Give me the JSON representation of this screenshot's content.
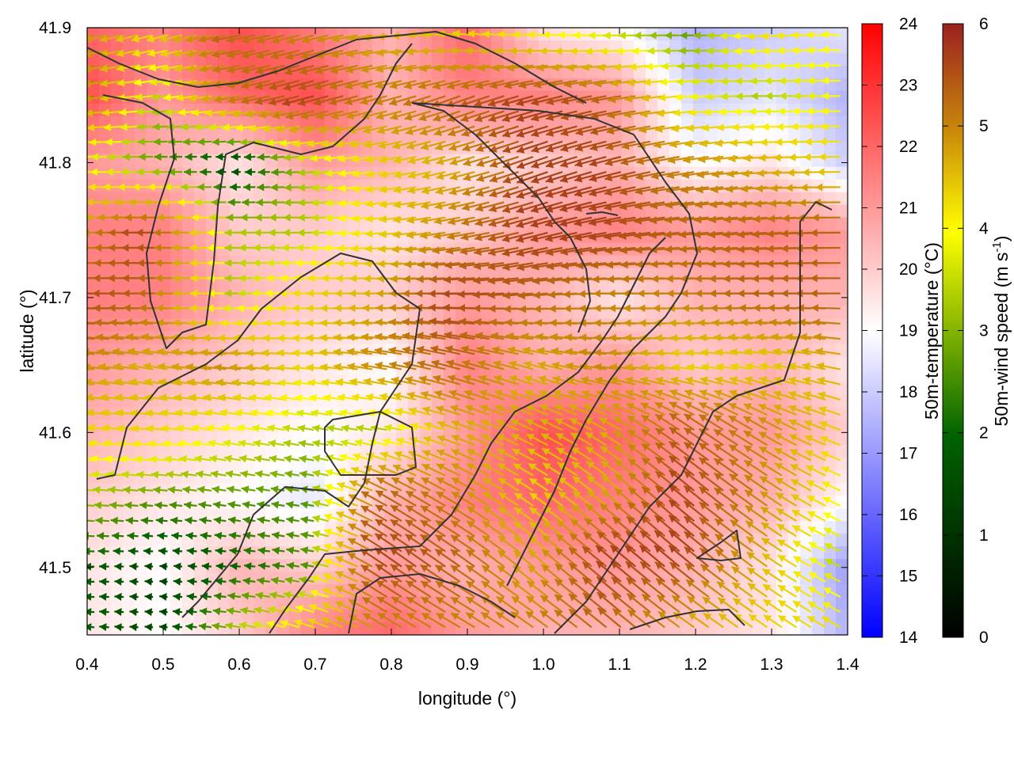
{
  "chart_data": {
    "type": "heatmap",
    "title": "",
    "xlabel": "longitude (°)",
    "ylabel": "latitude (°)",
    "xlim": [
      0.4,
      1.4
    ],
    "ylim": [
      41.45,
      41.9
    ],
    "x_ticks": [
      "0.4",
      "0.5",
      "0.6",
      "0.7",
      "0.8",
      "0.9",
      "1.0",
      "1.1",
      "1.2",
      "1.3",
      "1.4"
    ],
    "y_ticks": [
      "41.5",
      "41.6",
      "41.7",
      "41.8",
      "41.9"
    ],
    "colorbars": [
      {
        "label": "50m-temperature (°C)",
        "range": [
          14,
          24
        ],
        "ticks": [
          "14",
          "15",
          "16",
          "17",
          "18",
          "19",
          "20",
          "21",
          "22",
          "23",
          "24"
        ],
        "colors": [
          "#0000ff",
          "#ffffff",
          "#ff0000"
        ]
      },
      {
        "label_main": "50m-wind speed (m s",
        "label_sup": "-1",
        "label_end": ")",
        "range": [
          0,
          6
        ],
        "ticks": [
          "0",
          "1",
          "2",
          "3",
          "4",
          "5",
          "6"
        ],
        "colors": [
          "#000000",
          "#006400",
          "#ffff00",
          "#c8860a",
          "#9b2020"
        ]
      }
    ],
    "temperature_field": {
      "lon": [
        0.4,
        0.5,
        0.6,
        0.7,
        0.8,
        0.9,
        1.0,
        1.1,
        1.2,
        1.3,
        1.4
      ],
      "lat": [
        41.9,
        41.85,
        41.8,
        41.75,
        41.7,
        41.65,
        41.6,
        41.55,
        41.5,
        41.45
      ],
      "values": [
        [
          22.0,
          21.5,
          22.5,
          21.5,
          20.5,
          22.0,
          19.5,
          19.0,
          17.5,
          18.0,
          18.5
        ],
        [
          22.5,
          21.0,
          22.0,
          22.5,
          20.5,
          21.5,
          21.5,
          21.0,
          18.0,
          18.5,
          17.5
        ],
        [
          21.0,
          20.5,
          19.5,
          21.0,
          20.5,
          19.5,
          20.0,
          20.5,
          19.0,
          19.5,
          18.0
        ],
        [
          21.5,
          21.5,
          20.0,
          20.0,
          19.5,
          20.0,
          21.0,
          21.5,
          21.0,
          21.5,
          21.0
        ],
        [
          21.5,
          21.5,
          20.5,
          20.0,
          20.0,
          21.0,
          20.5,
          19.5,
          20.5,
          20.5,
          20.5
        ],
        [
          21.0,
          20.5,
          20.0,
          19.5,
          19.0,
          21.5,
          20.5,
          21.0,
          20.0,
          20.5,
          19.5
        ],
        [
          20.5,
          20.0,
          19.5,
          19.0,
          19.5,
          21.0,
          22.5,
          22.0,
          21.0,
          21.0,
          20.0
        ],
        [
          20.0,
          19.5,
          19.0,
          18.5,
          20.5,
          21.5,
          22.0,
          21.5,
          21.0,
          20.5,
          19.0
        ],
        [
          19.5,
          19.0,
          20.5,
          20.0,
          21.0,
          20.5,
          21.0,
          21.0,
          20.5,
          19.5,
          17.0
        ],
        [
          19.5,
          19.0,
          20.0,
          21.5,
          22.0,
          21.0,
          20.5,
          20.5,
          20.0,
          19.5,
          17.5
        ]
      ]
    },
    "wind_field": {
      "lon": [
        0.4,
        0.5,
        0.6,
        0.7,
        0.8,
        0.9,
        1.0,
        1.1,
        1.2,
        1.3,
        1.4
      ],
      "lat": [
        41.9,
        41.85,
        41.8,
        41.75,
        41.7,
        41.65,
        41.6,
        41.55,
        41.5,
        41.45
      ],
      "speed": [
        [
          4.5,
          3.5,
          5.0,
          4.5,
          4.0,
          3.5,
          3.0,
          2.5,
          2.0,
          3.5,
          3.0
        ],
        [
          5.0,
          2.5,
          4.5,
          5.5,
          4.5,
          5.0,
          5.5,
          5.0,
          3.0,
          2.5,
          3.0
        ],
        [
          3.0,
          2.0,
          1.0,
          2.5,
          3.5,
          4.0,
          5.5,
          5.5,
          4.5,
          4.0,
          3.5
        ],
        [
          4.0,
          5.5,
          2.5,
          2.5,
          3.5,
          4.5,
          5.5,
          5.5,
          5.0,
          5.0,
          5.0
        ],
        [
          5.5,
          5.0,
          2.5,
          3.5,
          4.0,
          5.5,
          5.0,
          4.5,
          4.5,
          5.0,
          5.0
        ],
        [
          4.5,
          4.0,
          4.5,
          3.5,
          4.5,
          5.0,
          4.0,
          4.5,
          3.5,
          3.5,
          4.0
        ],
        [
          3.5,
          3.5,
          3.0,
          2.5,
          2.5,
          4.0,
          4.0,
          4.0,
          5.0,
          4.5,
          3.5
        ],
        [
          2.5,
          2.0,
          2.0,
          2.0,
          5.0,
          4.5,
          3.5,
          4.0,
          5.5,
          4.5,
          3.0
        ],
        [
          1.5,
          1.0,
          1.5,
          2.0,
          5.5,
          5.0,
          4.0,
          5.5,
          5.5,
          4.0,
          2.5
        ],
        [
          1.5,
          1.0,
          2.5,
          3.5,
          4.5,
          4.5,
          4.5,
          5.0,
          4.0,
          3.5,
          3.5
        ]
      ],
      "direction_deg": [
        [
          190,
          195,
          190,
          195,
          185,
          170,
          175,
          180,
          180,
          185,
          175
        ],
        [
          190,
          185,
          190,
          195,
          195,
          200,
          195,
          190,
          185,
          180,
          180
        ],
        [
          180,
          180,
          180,
          185,
          190,
          195,
          200,
          195,
          190,
          185,
          180
        ],
        [
          180,
          180,
          180,
          180,
          185,
          190,
          195,
          190,
          185,
          185,
          180
        ],
        [
          180,
          180,
          180,
          180,
          180,
          180,
          185,
          180,
          180,
          180,
          180
        ],
        [
          175,
          170,
          175,
          175,
          170,
          165,
          165,
          175,
          175,
          170,
          170
        ],
        [
          170,
          175,
          170,
          170,
          170,
          160,
          155,
          150,
          145,
          150,
          160
        ],
        [
          175,
          175,
          170,
          170,
          150,
          150,
          145,
          140,
          140,
          145,
          155
        ],
        [
          180,
          175,
          175,
          170,
          145,
          145,
          140,
          140,
          140,
          145,
          155
        ],
        [
          175,
          175,
          170,
          160,
          150,
          150,
          145,
          140,
          145,
          145,
          150
        ]
      ]
    }
  }
}
